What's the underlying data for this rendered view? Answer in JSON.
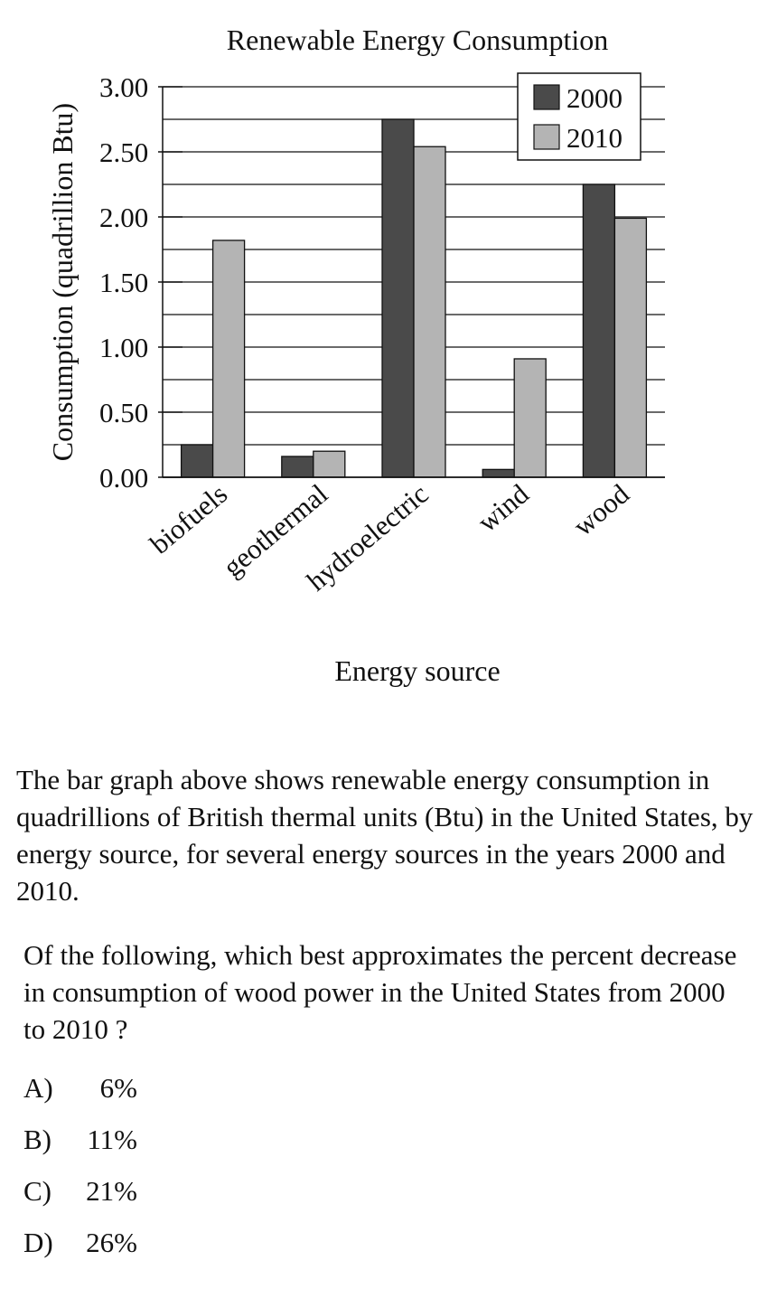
{
  "chart_data": {
    "type": "bar",
    "title": "Renewable Energy Consumption",
    "xlabel": "Energy source",
    "ylabel": "Consumption (quadrillion Btu)",
    "categories": [
      "biofuels",
      "geothermal",
      "hydroelectric",
      "wind",
      "wood"
    ],
    "series": [
      {
        "name": "2000",
        "values": [
          0.25,
          0.16,
          2.75,
          0.06,
          2.25
        ],
        "color": "#4a4a4a"
      },
      {
        "name": "2010",
        "values": [
          1.82,
          0.2,
          2.54,
          0.91,
          1.99
        ],
        "color": "#b4b4b4"
      }
    ],
    "yticks": [
      "0.00",
      "0.50",
      "1.00",
      "1.50",
      "2.00",
      "2.50",
      "3.00"
    ],
    "ylim": [
      0,
      3
    ],
    "minor_gridline_step": 0.25,
    "grid": true,
    "legend": "top-right"
  },
  "question": {
    "intro": "The bar graph above shows renewable energy consumption in quadrillions of British thermal units (Btu) in the United States, by energy source, for several energy sources in the years 2000 and 2010.",
    "prompt": "Of the following, which best approximates the percent decrease in consumption of wood power in the United States from 2000 to 2010 ?",
    "choices": [
      {
        "letter": "A)",
        "value": "6%"
      },
      {
        "letter": "B)",
        "value": "11%"
      },
      {
        "letter": "C)",
        "value": "21%"
      },
      {
        "letter": "D)",
        "value": "26%"
      }
    ]
  }
}
